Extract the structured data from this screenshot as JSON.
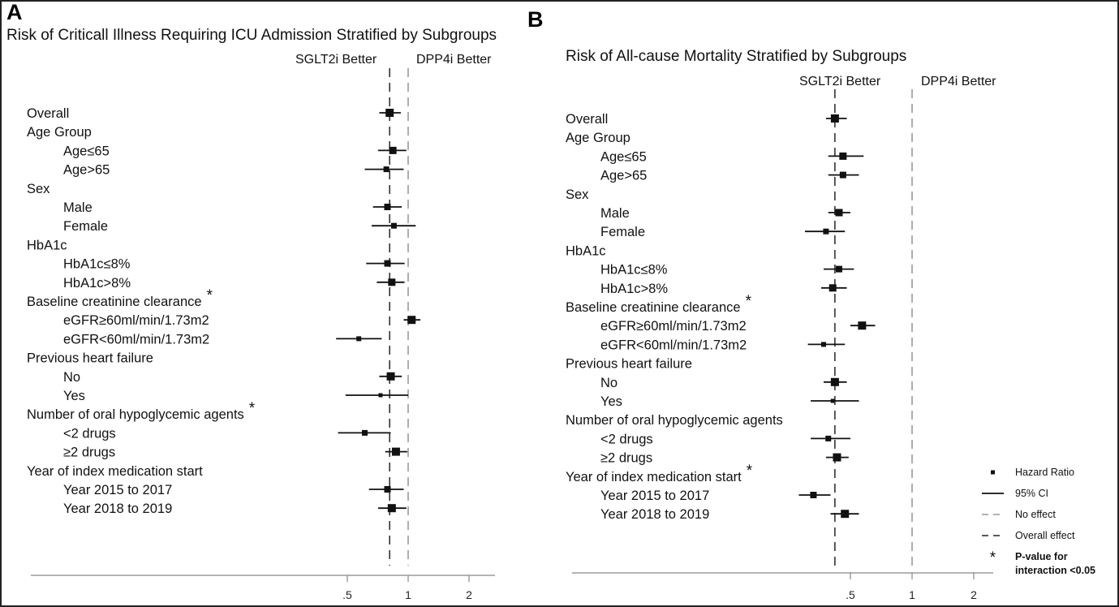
{
  "chart_data": [
    {
      "type": "forest",
      "panel_label": "A",
      "title": "Risk of Criticall Illness Requiring ICU Admission Stratified by Subgroups",
      "left_header": "SGLT2i Better",
      "right_header": "DPP4i Better",
      "x_ticks": [
        ".5",
        "1",
        "2"
      ],
      "x_scale": "log",
      "xlim": [
        0.2,
        2.5
      ],
      "overall_effect": 0.81,
      "no_effect": 1,
      "rows": [
        {
          "label": "Overall",
          "level": 0,
          "hr": 0.81,
          "lo": 0.72,
          "hi": 0.92,
          "size": 10
        },
        {
          "label": "Age Group",
          "level": 0
        },
        {
          "label": "Age≤65",
          "level": 1,
          "hr": 0.84,
          "lo": 0.71,
          "hi": 0.98,
          "size": 9
        },
        {
          "label": "Age>65",
          "level": 1,
          "hr": 0.78,
          "lo": 0.61,
          "hi": 0.95,
          "size": 7
        },
        {
          "label": "Sex",
          "level": 0
        },
        {
          "label": "Male",
          "level": 1,
          "hr": 0.79,
          "lo": 0.67,
          "hi": 0.93,
          "size": 8
        },
        {
          "label": "Female",
          "level": 1,
          "hr": 0.85,
          "lo": 0.66,
          "hi": 1.09,
          "size": 7
        },
        {
          "label": "HbA1c",
          "level": 0
        },
        {
          "label": "HbA1c≤8%",
          "level": 1,
          "hr": 0.79,
          "lo": 0.62,
          "hi": 0.96,
          "size": 8
        },
        {
          "label": "HbA1c>8%",
          "level": 1,
          "hr": 0.83,
          "lo": 0.7,
          "hi": 0.96,
          "size": 9
        },
        {
          "label": "Baseline creatinine clearance",
          "level": 0,
          "star": true
        },
        {
          "label": "eGFR≥60ml/min/1.73m2",
          "level": 1,
          "hr": 1.04,
          "lo": 0.95,
          "hi": 1.15,
          "size": 10
        },
        {
          "label": "eGFR<60ml/min/1.73m2",
          "level": 1,
          "hr": 0.57,
          "lo": 0.44,
          "hi": 0.74,
          "size": 6
        },
        {
          "label": "Previous heart failure",
          "level": 0
        },
        {
          "label": "No",
          "level": 1,
          "hr": 0.82,
          "lo": 0.72,
          "hi": 0.93,
          "size": 10
        },
        {
          "label": "Yes",
          "level": 1,
          "hr": 0.73,
          "lo": 0.49,
          "hi": 1.0,
          "size": 5
        },
        {
          "label": "Number of oral hypoglycemic agents",
          "level": 0,
          "star": true
        },
        {
          "label": "<2 drugs",
          "level": 1,
          "hr": 0.61,
          "lo": 0.45,
          "hi": 0.82,
          "size": 7
        },
        {
          "label": "≥2 drugs",
          "level": 1,
          "hr": 0.87,
          "lo": 0.77,
          "hi": 0.99,
          "size": 10
        },
        {
          "label": "Year of index medication start",
          "level": 0
        },
        {
          "label": "Year 2015 to 2017",
          "level": 1,
          "hr": 0.79,
          "lo": 0.64,
          "hi": 0.95,
          "size": 8
        },
        {
          "label": "Year 2018 to 2019",
          "level": 1,
          "hr": 0.83,
          "lo": 0.71,
          "hi": 0.98,
          "size": 10
        }
      ]
    },
    {
      "type": "forest",
      "panel_label": "B",
      "title": "Risk of All-cause Mortality Stratified by Subgroups",
      "left_header": "SGLT2i Better",
      "right_header": "DPP4i Better",
      "x_ticks": [
        ".5",
        "1",
        "2"
      ],
      "x_scale": "log",
      "xlim": [
        0.1,
        2.4
      ],
      "overall_effect": 0.42,
      "no_effect": 1,
      "rows": [
        {
          "label": "Overall",
          "level": 0,
          "hr": 0.42,
          "lo": 0.38,
          "hi": 0.48,
          "size": 10
        },
        {
          "label": "Age Group",
          "level": 0
        },
        {
          "label": "Age≤65",
          "level": 1,
          "hr": 0.46,
          "lo": 0.39,
          "hi": 0.58,
          "size": 9
        },
        {
          "label": "Age>65",
          "level": 1,
          "hr": 0.46,
          "lo": 0.39,
          "hi": 0.55,
          "size": 8
        },
        {
          "label": "Sex",
          "level": 0
        },
        {
          "label": "Male",
          "level": 1,
          "hr": 0.44,
          "lo": 0.39,
          "hi": 0.5,
          "size": 9
        },
        {
          "label": "Female",
          "level": 1,
          "hr": 0.38,
          "lo": 0.3,
          "hi": 0.47,
          "size": 7
        },
        {
          "label": "HbA1c",
          "level": 0
        },
        {
          "label": "HbA1c≤8%",
          "level": 1,
          "hr": 0.44,
          "lo": 0.37,
          "hi": 0.52,
          "size": 8
        },
        {
          "label": "HbA1c>8%",
          "level": 1,
          "hr": 0.41,
          "lo": 0.36,
          "hi": 0.48,
          "size": 9
        },
        {
          "label": "Baseline creatinine clearance",
          "level": 0,
          "star": true
        },
        {
          "label": "eGFR≥60ml/min/1.73m2",
          "level": 1,
          "hr": 0.57,
          "lo": 0.5,
          "hi": 0.66,
          "size": 10
        },
        {
          "label": "eGFR<60ml/min/1.73m2",
          "level": 1,
          "hr": 0.37,
          "lo": 0.31,
          "hi": 0.47,
          "size": 6
        },
        {
          "label": "Previous heart failure",
          "level": 0
        },
        {
          "label": "No",
          "level": 1,
          "hr": 0.42,
          "lo": 0.37,
          "hi": 0.48,
          "size": 10
        },
        {
          "label": "Yes",
          "level": 1,
          "hr": 0.41,
          "lo": 0.32,
          "hi": 0.55,
          "size": 5
        },
        {
          "label": "Number of oral hypoglycemic agents",
          "level": 0
        },
        {
          "label": "<2 drugs",
          "level": 1,
          "hr": 0.39,
          "lo": 0.32,
          "hi": 0.5,
          "size": 7
        },
        {
          "label": "≥2 drugs",
          "level": 1,
          "hr": 0.43,
          "lo": 0.38,
          "hi": 0.49,
          "size": 10
        },
        {
          "label": "Year of index medication start",
          "level": 0,
          "star": true
        },
        {
          "label": "Year 2015 to 2017",
          "level": 1,
          "hr": 0.33,
          "lo": 0.28,
          "hi": 0.4,
          "size": 8
        },
        {
          "label": "Year 2018 to 2019",
          "level": 1,
          "hr": 0.47,
          "lo": 0.4,
          "hi": 0.55,
          "size": 10
        }
      ]
    }
  ],
  "legend": {
    "items": [
      {
        "kind": "point",
        "label": "Hazard Ratio"
      },
      {
        "kind": "solid",
        "label": "95% CI"
      },
      {
        "kind": "dash-gray",
        "label": "No effect"
      },
      {
        "kind": "dash-black",
        "label": "Overall effect"
      },
      {
        "kind": "star",
        "label": "P-value for interaction <0.05"
      }
    ]
  }
}
